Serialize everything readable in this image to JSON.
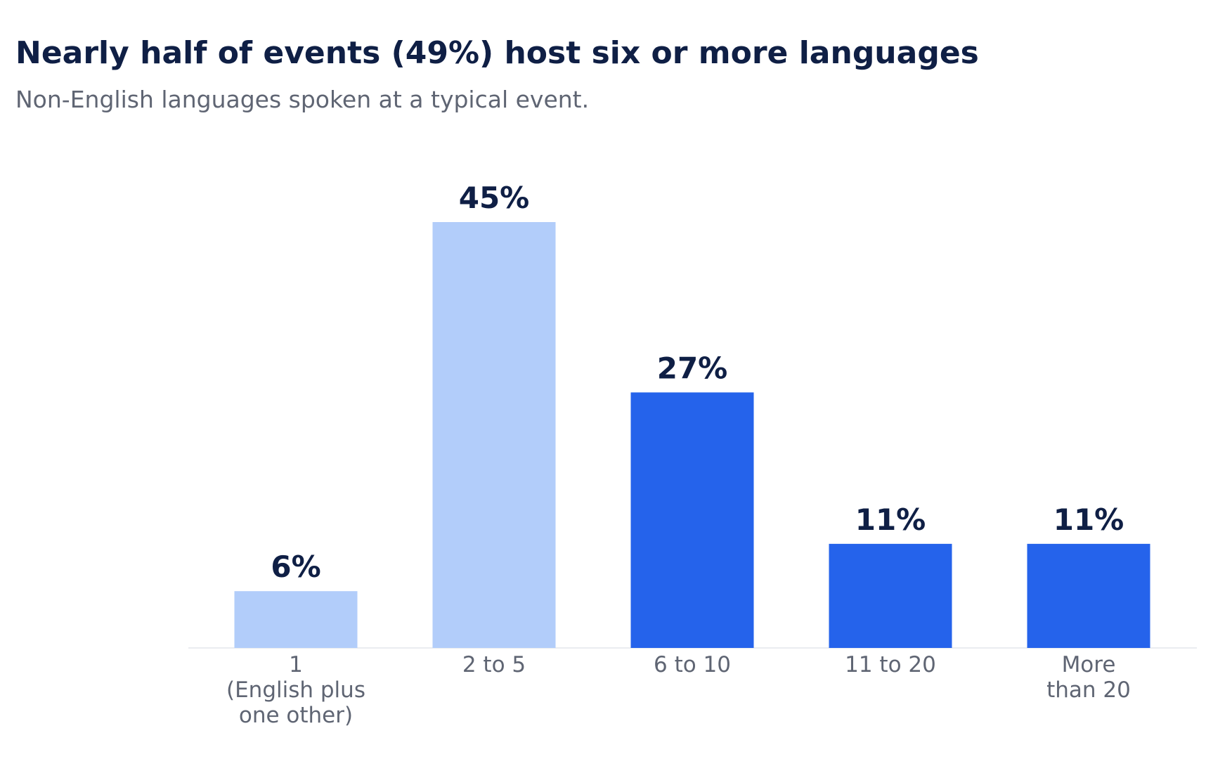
{
  "title": "Nearly half of events (49%) host six or more languages",
  "subtitle": "Non-English languages spoken at a typical event.",
  "colors": {
    "title": "#0f1f45",
    "subtitle": "#5f6573",
    "bar_light": "#b2cdfa",
    "bar_dark": "#2563eb",
    "value_label": "#0f1f45",
    "tick_label": "#5f6573",
    "baseline": "#e3e6ec"
  },
  "chart_data": {
    "type": "bar",
    "title": "Nearly half of events (49%) host six or more languages",
    "subtitle": "Non-English languages spoken at a typical event.",
    "categories": [
      [
        "1",
        "(English plus",
        "one other)"
      ],
      [
        "2 to 5"
      ],
      [
        "6 to 10"
      ],
      [
        "11 to 20"
      ],
      [
        "More",
        "than 20"
      ]
    ],
    "values": [
      6,
      45,
      27,
      11,
      11
    ],
    "value_labels": [
      "6%",
      "45%",
      "27%",
      "11%",
      "11%"
    ],
    "highlighted": [
      false,
      false,
      true,
      true,
      true
    ],
    "xlabel": "",
    "ylabel": "",
    "ylim": [
      0,
      45
    ],
    "grid": false,
    "legend": "none"
  }
}
